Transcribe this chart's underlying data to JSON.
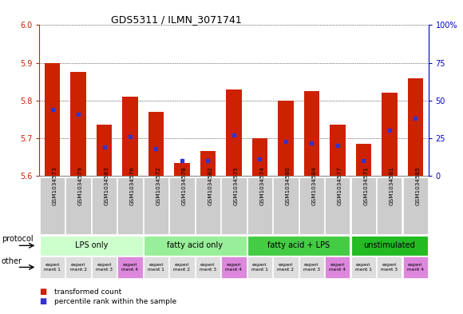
{
  "title": "GDS5311 / ILMN_3071741",
  "gsm_ids": [
    "GSM1034573",
    "GSM1034579",
    "GSM1034583",
    "GSM1034576",
    "GSM1034572",
    "GSM1034578",
    "GSM1034582",
    "GSM1034575",
    "GSM1034574",
    "GSM1034580",
    "GSM1034584",
    "GSM1034577",
    "GSM1034571",
    "GSM1034581",
    "GSM1034585"
  ],
  "transformed_counts": [
    5.9,
    5.875,
    5.735,
    5.81,
    5.77,
    5.635,
    5.665,
    5.83,
    5.7,
    5.8,
    5.825,
    5.735,
    5.685,
    5.82,
    5.858
  ],
  "percentile_ranks": [
    44,
    41,
    19,
    26,
    18,
    10,
    10,
    27,
    11,
    23,
    22,
    20,
    10,
    30,
    38
  ],
  "ylim_left": [
    5.6,
    6.0
  ],
  "ylim_right": [
    0,
    100
  ],
  "yticks_left": [
    5.6,
    5.7,
    5.8,
    5.9,
    6.0
  ],
  "yticks_right": [
    0,
    25,
    50,
    75,
    100
  ],
  "ytick_right_labels": [
    "0",
    "25",
    "50",
    "75",
    "100%"
  ],
  "bar_color": "#cc2200",
  "dot_color": "#3333cc",
  "protocols": [
    {
      "label": "LPS only",
      "start": 0,
      "end": 4,
      "color": "#ccffcc"
    },
    {
      "label": "fatty acid only",
      "start": 4,
      "end": 8,
      "color": "#99ee99"
    },
    {
      "label": "fatty acid + LPS",
      "start": 8,
      "end": 12,
      "color": "#44cc44"
    },
    {
      "label": "unstimulated",
      "start": 12,
      "end": 15,
      "color": "#22bb22"
    }
  ],
  "other_labels": [
    "experi\nment 1",
    "experi\nment 2",
    "experi\nment 3",
    "experi\nment 4",
    "experi\nment 1",
    "experi\nment 2",
    "experi\nment 3",
    "experi\nment 4",
    "experi\nment 1",
    "experi\nment 2",
    "experi\nment 3",
    "experi\nment 4",
    "experi\nment 1",
    "experi\nment 3",
    "experi\nment 4"
  ],
  "other_colors": [
    "#dddddd",
    "#dddddd",
    "#dddddd",
    "#dd88dd",
    "#dddddd",
    "#dddddd",
    "#dddddd",
    "#dd88dd",
    "#dddddd",
    "#dddddd",
    "#dddddd",
    "#dd88dd",
    "#dddddd",
    "#dddddd",
    "#dd88dd"
  ],
  "bar_width": 0.6,
  "bg_color": "#ffffff",
  "grid_color": "#000000",
  "axis_color_left": "#cc2200",
  "axis_color_right": "#0000cc",
  "legend_red": "transformed count",
  "legend_blue": "percentile rank within the sample",
  "protocol_label": "protocol",
  "other_label": "other",
  "xticklabel_bg": "#cccccc"
}
